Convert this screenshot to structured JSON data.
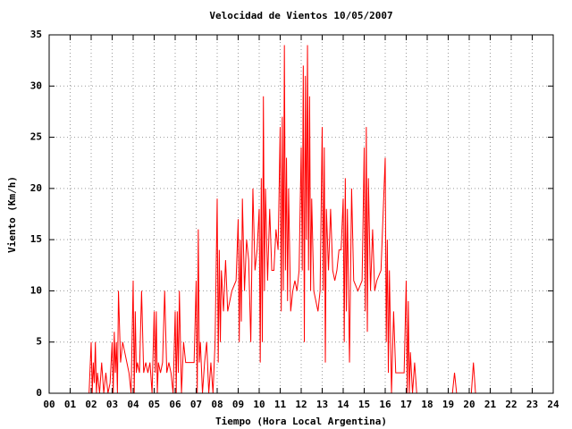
{
  "chart_data": {
    "type": "line",
    "title": "Velocidad de Vientos 10/05/2007",
    "xlabel": "Tiempo (Hora Local Argentina)",
    "ylabel": "Viento (Km/h)",
    "grid": true,
    "xlim": [
      0,
      24
    ],
    "ylim": [
      0,
      35
    ],
    "xticks": [
      {
        "value": 0,
        "label": "00"
      },
      {
        "value": 1,
        "label": "01"
      },
      {
        "value": 2,
        "label": "02"
      },
      {
        "value": 3,
        "label": "03"
      },
      {
        "value": 4,
        "label": "04"
      },
      {
        "value": 5,
        "label": "05"
      },
      {
        "value": 6,
        "label": "06"
      },
      {
        "value": 7,
        "label": "07"
      },
      {
        "value": 8,
        "label": "08"
      },
      {
        "value": 9,
        "label": "09"
      },
      10,
      11,
      12,
      13,
      14,
      15,
      16,
      17,
      18,
      19,
      20,
      21,
      22,
      23,
      24
    ],
    "yticks": [
      0,
      5,
      10,
      15,
      20,
      25,
      30,
      35
    ],
    "x": [
      1.9,
      2.0,
      2.05,
      2.1,
      2.15,
      2.2,
      2.25,
      2.3,
      2.4,
      2.5,
      2.6,
      2.7,
      2.8,
      2.9,
      3.0,
      3.05,
      3.1,
      3.15,
      3.2,
      3.25,
      3.3,
      3.4,
      3.5,
      3.6,
      3.7,
      3.8,
      3.9,
      4.0,
      4.05,
      4.1,
      4.15,
      4.2,
      4.3,
      4.4,
      4.5,
      4.6,
      4.7,
      4.8,
      4.9,
      5.0,
      5.05,
      5.1,
      5.15,
      5.2,
      5.3,
      5.4,
      5.5,
      5.6,
      5.7,
      5.8,
      5.9,
      6.0,
      6.05,
      6.1,
      6.15,
      6.2,
      6.3,
      6.4,
      6.5,
      6.7,
      6.9,
      7.0,
      7.05,
      7.1,
      7.15,
      7.2,
      7.3,
      7.4,
      7.5,
      7.6,
      7.7,
      7.8,
      7.9,
      8.0,
      8.05,
      8.1,
      8.15,
      8.2,
      8.3,
      8.4,
      8.5,
      8.7,
      8.9,
      9.0,
      9.05,
      9.1,
      9.15,
      9.2,
      9.3,
      9.4,
      9.5,
      9.6,
      9.7,
      9.8,
      9.9,
      10.0,
      10.05,
      10.1,
      10.15,
      10.2,
      10.25,
      10.3,
      10.4,
      10.5,
      10.6,
      10.7,
      10.8,
      10.9,
      11.0,
      11.05,
      11.1,
      11.15,
      11.2,
      11.25,
      11.3,
      11.35,
      11.4,
      11.5,
      11.6,
      11.7,
      11.8,
      11.9,
      12.0,
      12.05,
      12.1,
      12.15,
      12.2,
      12.25,
      12.3,
      12.35,
      12.4,
      12.45,
      12.5,
      12.6,
      12.7,
      12.8,
      12.9,
      13.0,
      13.05,
      13.1,
      13.15,
      13.2,
      13.3,
      13.4,
      13.5,
      13.6,
      13.7,
      13.8,
      13.9,
      14.0,
      14.05,
      14.1,
      14.15,
      14.2,
      14.3,
      14.4,
      14.5,
      14.7,
      14.9,
      15.0,
      15.05,
      15.1,
      15.15,
      15.2,
      15.3,
      15.4,
      15.5,
      15.6,
      15.8,
      16.0,
      16.05,
      16.1,
      16.15,
      16.2,
      16.3,
      16.4,
      16.5,
      16.7,
      16.9,
      17.0,
      17.05,
      17.1,
      17.15,
      17.2,
      17.3,
      17.4,
      17.5,
      17.6,
      17.8,
      19.2,
      19.3,
      19.4,
      20.1,
      20.2,
      20.3,
      20.5
    ],
    "series": [
      {
        "color": "#ff0000",
        "values": [
          0,
          5,
          0,
          3,
          1,
          5,
          0,
          2,
          0,
          3,
          0,
          2,
          0,
          1,
          5,
          0,
          6,
          2,
          5,
          0,
          10,
          3,
          5,
          4,
          3,
          2,
          0,
          11,
          0,
          8,
          2,
          3,
          2,
          10,
          2,
          3,
          2,
          3,
          0,
          8,
          2,
          8,
          0,
          3,
          2,
          3,
          10,
          2,
          3,
          2,
          0,
          8,
          0,
          8,
          2,
          10,
          0,
          5,
          3,
          3,
          3,
          11,
          0,
          16,
          3,
          5,
          0,
          3,
          5,
          0,
          3,
          0,
          5,
          19,
          3,
          14,
          5,
          12,
          8,
          13,
          8,
          10,
          11,
          17,
          5,
          15,
          7,
          19,
          10,
          15,
          13,
          5,
          20,
          12,
          14,
          18,
          3,
          21,
          5,
          29,
          10,
          20,
          11,
          18,
          12,
          12,
          16,
          14,
          26,
          8,
          27,
          10,
          34,
          12,
          23,
          9,
          20,
          8,
          10,
          11,
          10,
          12,
          24,
          12,
          32,
          5,
          31,
          15,
          34,
          12,
          29,
          10,
          19,
          10,
          9,
          8,
          10,
          26,
          10,
          24,
          3,
          18,
          12,
          18,
          12,
          11,
          12,
          14,
          14,
          19,
          5,
          21,
          8,
          18,
          3,
          20,
          11,
          10,
          11,
          24,
          8,
          26,
          6,
          21,
          10,
          16,
          10,
          11,
          12,
          23,
          5,
          15,
          2,
          12,
          0,
          8,
          2,
          2,
          2,
          11,
          0,
          9,
          0,
          4,
          0,
          3,
          0,
          0,
          0,
          0,
          2,
          0,
          0,
          3,
          0,
          0
        ]
      }
    ]
  }
}
